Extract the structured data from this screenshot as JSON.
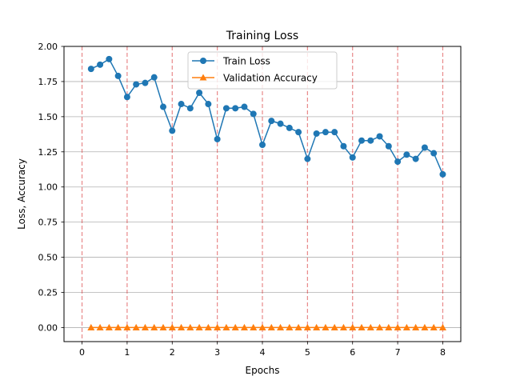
{
  "chart_data": {
    "type": "line",
    "title": "Training Loss",
    "xlabel": "Epochs",
    "ylabel": "Loss, Accuracy",
    "xlim": [
      -0.4,
      8.4
    ],
    "ylim": [
      -0.1,
      2.0
    ],
    "xticks": [
      0,
      1,
      2,
      3,
      4,
      5,
      6,
      7,
      8
    ],
    "xtick_labels": [
      "0",
      "1",
      "2",
      "3",
      "4",
      "5",
      "6",
      "7",
      "8"
    ],
    "yticks": [
      0.0,
      0.25,
      0.5,
      0.75,
      1.0,
      1.25,
      1.5,
      1.75,
      2.0
    ],
    "ytick_labels": [
      "0.00",
      "0.25",
      "0.50",
      "0.75",
      "1.00",
      "1.25",
      "1.50",
      "1.75",
      "2.00"
    ],
    "grid": "horizontal",
    "epoch_markers": [
      0,
      1,
      2,
      3,
      4,
      5,
      6,
      7,
      8
    ],
    "legend_position": "top-center",
    "series": [
      {
        "name": "Train Loss",
        "color": "#1f77b4",
        "marker": "circle",
        "x": [
          0.2,
          0.4,
          0.6,
          0.8,
          1.0,
          1.2,
          1.4,
          1.6,
          1.8,
          2.0,
          2.2,
          2.4,
          2.6,
          2.8,
          3.0,
          3.2,
          3.4,
          3.6,
          3.8,
          4.0,
          4.2,
          4.4,
          4.6,
          4.8,
          5.0,
          5.2,
          5.4,
          5.6,
          5.8,
          6.0,
          6.2,
          6.4,
          6.6,
          6.8,
          7.0,
          7.2,
          7.4,
          7.6,
          7.8,
          8.0
        ],
        "values": [
          1.84,
          1.87,
          1.91,
          1.79,
          1.64,
          1.73,
          1.74,
          1.78,
          1.57,
          1.4,
          1.59,
          1.56,
          1.67,
          1.59,
          1.34,
          1.56,
          1.56,
          1.57,
          1.52,
          1.3,
          1.47,
          1.45,
          1.42,
          1.39,
          1.2,
          1.38,
          1.39,
          1.39,
          1.29,
          1.21,
          1.33,
          1.33,
          1.36,
          1.29,
          1.18,
          1.23,
          1.2,
          1.28,
          1.24,
          1.09
        ]
      },
      {
        "name": "Validation Accuracy",
        "color": "#ff7f0e",
        "marker": "triangle",
        "x": [
          0.2,
          0.4,
          0.6,
          0.8,
          1.0,
          1.2,
          1.4,
          1.6,
          1.8,
          2.0,
          2.2,
          2.4,
          2.6,
          2.8,
          3.0,
          3.2,
          3.4,
          3.6,
          3.8,
          4.0,
          4.2,
          4.4,
          4.6,
          4.8,
          5.0,
          5.2,
          5.4,
          5.6,
          5.8,
          6.0,
          6.2,
          6.4,
          6.6,
          6.8,
          7.0,
          7.2,
          7.4,
          7.6,
          7.8,
          8.0
        ],
        "values": [
          0,
          0,
          0,
          0,
          0,
          0,
          0,
          0,
          0,
          0,
          0,
          0,
          0,
          0,
          0,
          0,
          0,
          0,
          0,
          0,
          0,
          0,
          0,
          0,
          0,
          0,
          0,
          0,
          0,
          0,
          0,
          0,
          0,
          0,
          0,
          0,
          0,
          0,
          0,
          0
        ]
      }
    ]
  }
}
